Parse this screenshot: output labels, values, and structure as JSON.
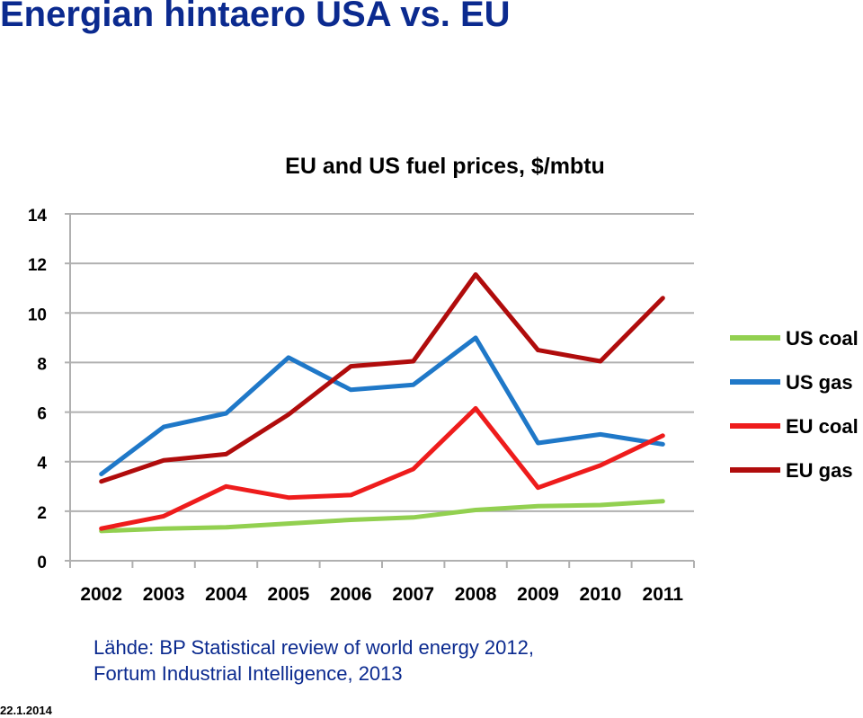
{
  "slide": {
    "title": "Energian hintaero USA vs. EU",
    "source_line1": "Lähde: BP Statistical review of world energy 2012,",
    "source_line2": "Fortum Industrial Intelligence, 2013",
    "date": "22.1.2014"
  },
  "chart_data": {
    "type": "line",
    "title": "EU and US fuel prices, $/mbtu",
    "xlabel": "",
    "ylabel": "",
    "x": [
      "2002",
      "2003",
      "2004",
      "2005",
      "2006",
      "2007",
      "2008",
      "2009",
      "2010",
      "2011"
    ],
    "ylim": [
      0,
      14
    ],
    "yticks": [
      0,
      2,
      4,
      6,
      8,
      10,
      12,
      14
    ],
    "grid": true,
    "legend": "right",
    "series": [
      {
        "name": "US coal",
        "color": "#92d050",
        "values": [
          1.2,
          1.3,
          1.35,
          1.5,
          1.65,
          1.75,
          2.05,
          2.2,
          2.25,
          2.4
        ]
      },
      {
        "name": "US gas",
        "color": "#1f78c8",
        "values": [
          3.5,
          5.4,
          5.95,
          8.2,
          6.9,
          7.1,
          9.0,
          4.75,
          5.1,
          4.7
        ]
      },
      {
        "name": "EU coal",
        "color": "#ee1c1c",
        "values": [
          1.3,
          1.8,
          3.0,
          2.55,
          2.65,
          3.7,
          6.15,
          2.95,
          3.85,
          5.05
        ]
      },
      {
        "name": "EU gas",
        "color": "#b00c0c",
        "values": [
          3.2,
          4.05,
          4.3,
          5.9,
          7.85,
          8.05,
          11.55,
          8.5,
          8.05,
          10.6
        ]
      }
    ]
  }
}
